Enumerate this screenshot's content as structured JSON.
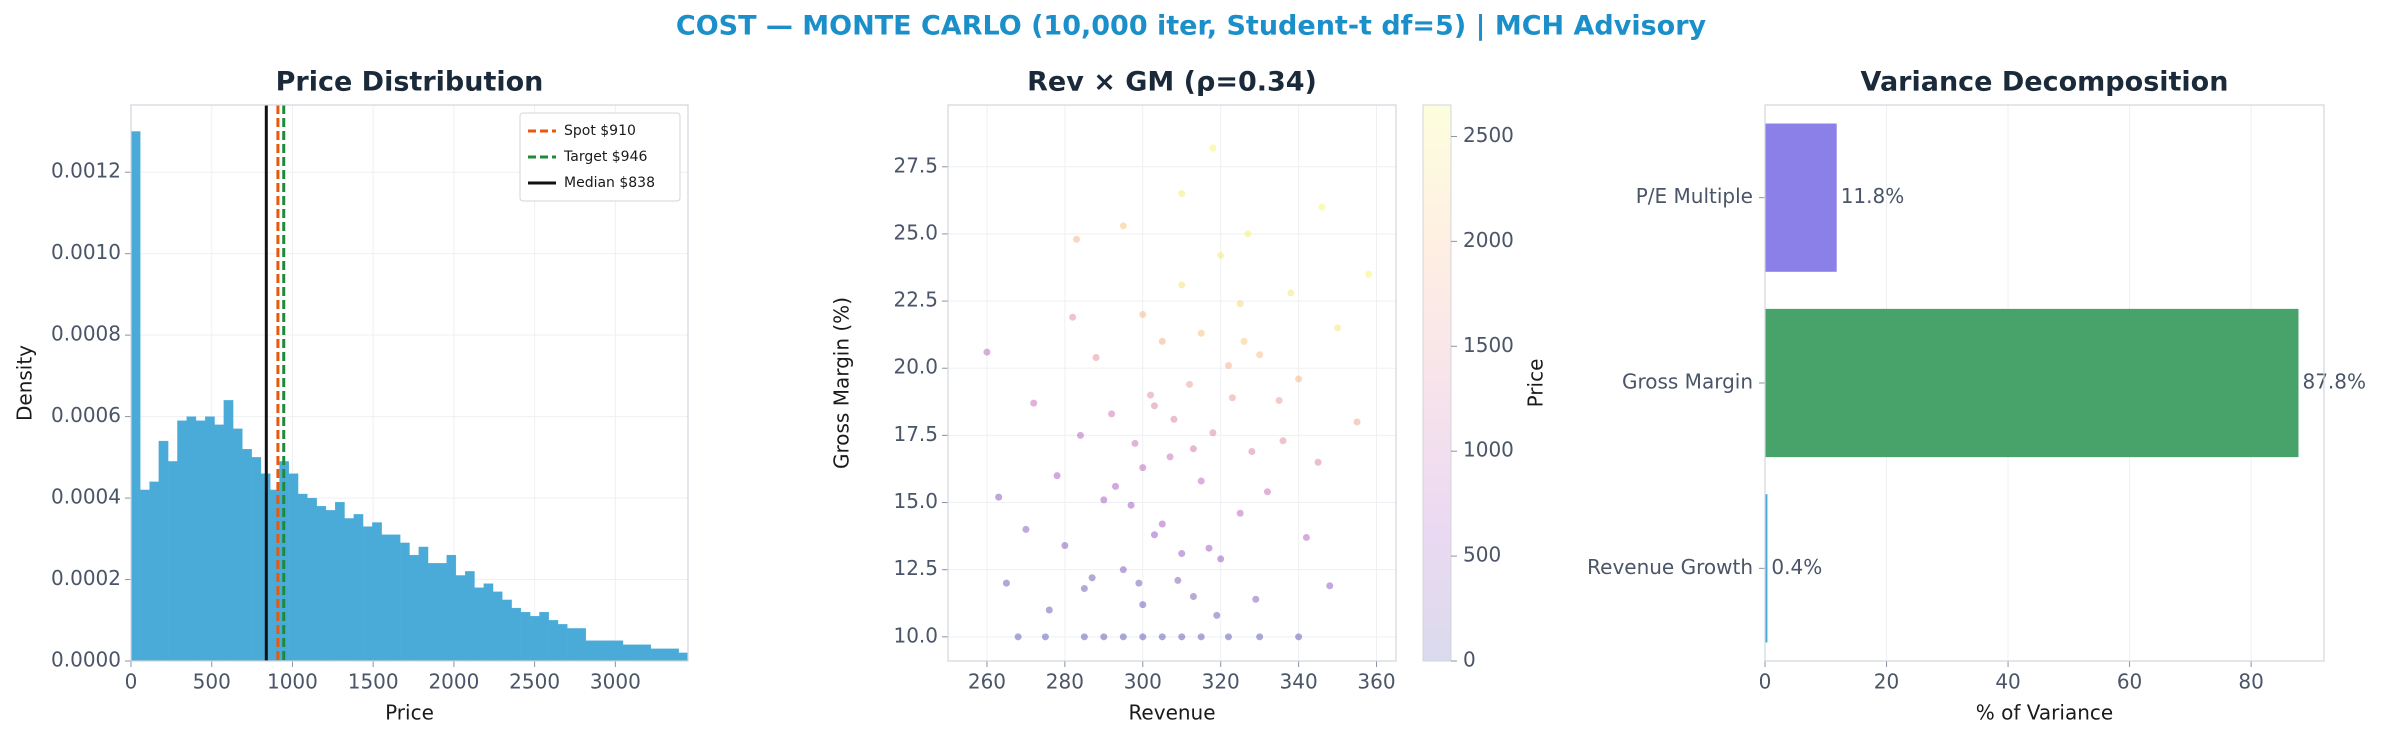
{
  "title": "COST — MONTE CARLO (10,000 iter, Student-t df=5) | MCH Advisory",
  "chart_data": [
    {
      "type": "histogram",
      "title": "Price Distribution",
      "xlabel": "Price",
      "ylabel": "Density",
      "color": "#4aabd8",
      "bins": [
        0,
        57.5,
        115,
        172.5,
        230,
        287.5,
        345,
        402.5,
        460,
        517.5,
        575,
        632.5,
        690,
        747.5,
        805,
        862.5,
        920,
        977.5,
        1035,
        1092.5,
        1150,
        1207.5,
        1265,
        1322.5,
        1380,
        1437.5,
        1495,
        1552.5,
        1610,
        1667.5,
        1725,
        1782.5,
        1840,
        1897.5,
        1955,
        2012.5,
        2070,
        2127.5,
        2185,
        2242.5,
        2300,
        2357.5,
        2415,
        2472.5,
        2530,
        2587.5,
        2645,
        2702.5,
        2760,
        2817.5,
        2875,
        2932.5,
        2990,
        3047.5,
        3105,
        3162.5,
        3220,
        3277.5,
        3335,
        3392.5,
        3450
      ],
      "values": [
        0.0013,
        0.00042,
        0.00044,
        0.00054,
        0.00049,
        0.00059,
        0.0006,
        0.00059,
        0.0006,
        0.00058,
        0.00064,
        0.00057,
        0.00052,
        0.0005,
        0.00046,
        0.00042,
        0.00049,
        0.00046,
        0.00041,
        0.0004,
        0.00038,
        0.00037,
        0.00039,
        0.00035,
        0.00036,
        0.00033,
        0.00034,
        0.00031,
        0.00031,
        0.00029,
        0.00026,
        0.00028,
        0.00024,
        0.00024,
        0.00026,
        0.00021,
        0.00022,
        0.00018,
        0.00019,
        0.00017,
        0.00015,
        0.00013,
        0.00012,
        0.00011,
        0.00012,
        0.0001,
        9e-05,
        8e-05,
        8e-05,
        5e-05,
        5e-05,
        5e-05,
        5e-05,
        4e-05,
        4e-05,
        4e-05,
        3e-05,
        3e-05,
        3e-05,
        2e-05
      ],
      "vlines": [
        {
          "name": "Spot $910",
          "value": 910,
          "color": "#e8590c",
          "dashed": true
        },
        {
          "name": "Target $946",
          "value": 946,
          "color": "#1e8a3a",
          "dashed": true
        },
        {
          "name": "Median $838",
          "value": 838,
          "color": "#111111",
          "dashed": false
        }
      ],
      "legend": "upper right",
      "grid": true,
      "xlim": [
        0,
        3450
      ],
      "xticks": [
        0,
        500,
        1000,
        1500,
        2000,
        2500,
        3000
      ],
      "ylim": [
        0,
        0.001365
      ],
      "yticks": [
        {
          "value": 0,
          "label": "0.0000"
        },
        {
          "value": 0.0002,
          "label": "0.0002"
        },
        {
          "value": 0.0004,
          "label": "0.0004"
        },
        {
          "value": 0.0006,
          "label": "0.0006"
        },
        {
          "value": 0.0008,
          "label": "0.0008"
        },
        {
          "value": 0.001,
          "label": "0.0010"
        },
        {
          "value": 0.0012,
          "label": "0.0012"
        }
      ]
    },
    {
      "type": "scatter",
      "title": "Rev × GM (ρ=0.34)",
      "xlabel": "Revenue",
      "ylabel": "Gross Margin (%)",
      "colorbar_label": "Price",
      "grid": true,
      "x": [
        300,
        285,
        310,
        322,
        295,
        275,
        330,
        305,
        315,
        290,
        268,
        340,
        300,
        295,
        310,
        285,
        305,
        320,
        290,
        300,
        315,
        325,
        280,
        298,
        308,
        318,
        328,
        312,
        322,
        302,
        292,
        335,
        315,
        325,
        305,
        310,
        320,
        330,
        340,
        300,
        288,
        278,
        270,
        265,
        345,
        350,
        355,
        260,
        283,
        295,
        318,
        310,
        327,
        303,
        313,
        297,
        307,
        317,
        287,
        332,
        342,
        338,
        348,
        272,
        282,
        323,
        313,
        293,
        303,
        263,
        358,
        299,
        309,
        319,
        329,
        276,
        284,
        326,
        336,
        346
      ],
      "y": [
        10,
        10,
        10,
        10,
        10,
        10,
        10,
        10,
        10,
        10,
        10,
        10,
        11.2,
        12.5,
        13.1,
        11.8,
        14.2,
        12.9,
        15.1,
        16.3,
        15.8,
        14.6,
        13.4,
        17.2,
        18.1,
        17.6,
        16.9,
        19.4,
        20.1,
        19.0,
        18.3,
        18.8,
        21.3,
        22.4,
        21.0,
        23.1,
        24.2,
        20.5,
        19.6,
        22.0,
        20.4,
        16.0,
        14.0,
        12.0,
        16.5,
        21.5,
        18.0,
        20.6,
        24.8,
        25.3,
        28.2,
        26.5,
        25.0,
        13.8,
        11.5,
        14.9,
        16.7,
        13.3,
        12.2,
        15.4,
        13.7,
        22.8,
        11.9,
        18.7,
        21.9,
        18.9,
        17.0,
        15.6,
        18.6,
        15.2,
        23.5,
        12.0,
        12.1,
        10.8,
        11.4,
        11.0,
        17.5,
        21.0,
        17.3,
        26.0
      ],
      "c": [
        0,
        0,
        0,
        0,
        0,
        0,
        0,
        0,
        0,
        0,
        0,
        0,
        120,
        300,
        450,
        180,
        620,
        480,
        640,
        900,
        920,
        820,
        320,
        1050,
        1280,
        1300,
        1250,
        1650,
        1850,
        1450,
        1100,
        1600,
        2050,
        2300,
        1850,
        2350,
        2500,
        2000,
        1900,
        1950,
        1500,
        700,
        350,
        100,
        1300,
        2400,
        1700,
        900,
        1900,
        2100,
        2600,
        2500,
        2550,
        500,
        250,
        560,
        990,
        580,
        160,
        1000,
        780,
        2450,
        400,
        950,
        1400,
        1600,
        1150,
        700,
        1300,
        300,
        2600,
        200,
        310,
        150,
        320,
        60,
        800,
        2150,
        1450,
        2600
      ],
      "colormap": [
        "#0d0887",
        "#7e03a8",
        "#cc4778",
        "#f89540",
        "#f0f921"
      ],
      "xlim": [
        250,
        365
      ],
      "xticks": [
        260,
        280,
        300,
        320,
        340,
        360
      ],
      "ylim": [
        9.1,
        29.8
      ],
      "yticks": [
        {
          "value": 10,
          "label": "10.0"
        },
        {
          "value": 12.5,
          "label": "12.5"
        },
        {
          "value": 15,
          "label": "15.0"
        },
        {
          "value": 17.5,
          "label": "17.5"
        },
        {
          "value": 20,
          "label": "20.0"
        },
        {
          "value": 22.5,
          "label": "22.5"
        },
        {
          "value": 25,
          "label": "25.0"
        },
        {
          "value": 27.5,
          "label": "27.5"
        }
      ],
      "clim": [
        0,
        2650
      ],
      "cticks": [
        0,
        500,
        1000,
        1500,
        2000,
        2500
      ]
    },
    {
      "type": "barh",
      "title": "Variance Decomposition",
      "xlabel": "% of Variance",
      "grid": true,
      "categories": [
        "Revenue Growth",
        "Gross Margin",
        "P/E Multiple"
      ],
      "values": [
        0.4,
        87.8,
        11.8
      ],
      "value_labels": [
        "0.4%",
        "87.8%",
        "11.8%"
      ],
      "colors": [
        "#4aabd8",
        "#48a36b",
        "#8b7fe8"
      ],
      "xlim": [
        0,
        92
      ],
      "xticks": [
        0,
        20,
        40,
        60,
        80
      ]
    }
  ]
}
